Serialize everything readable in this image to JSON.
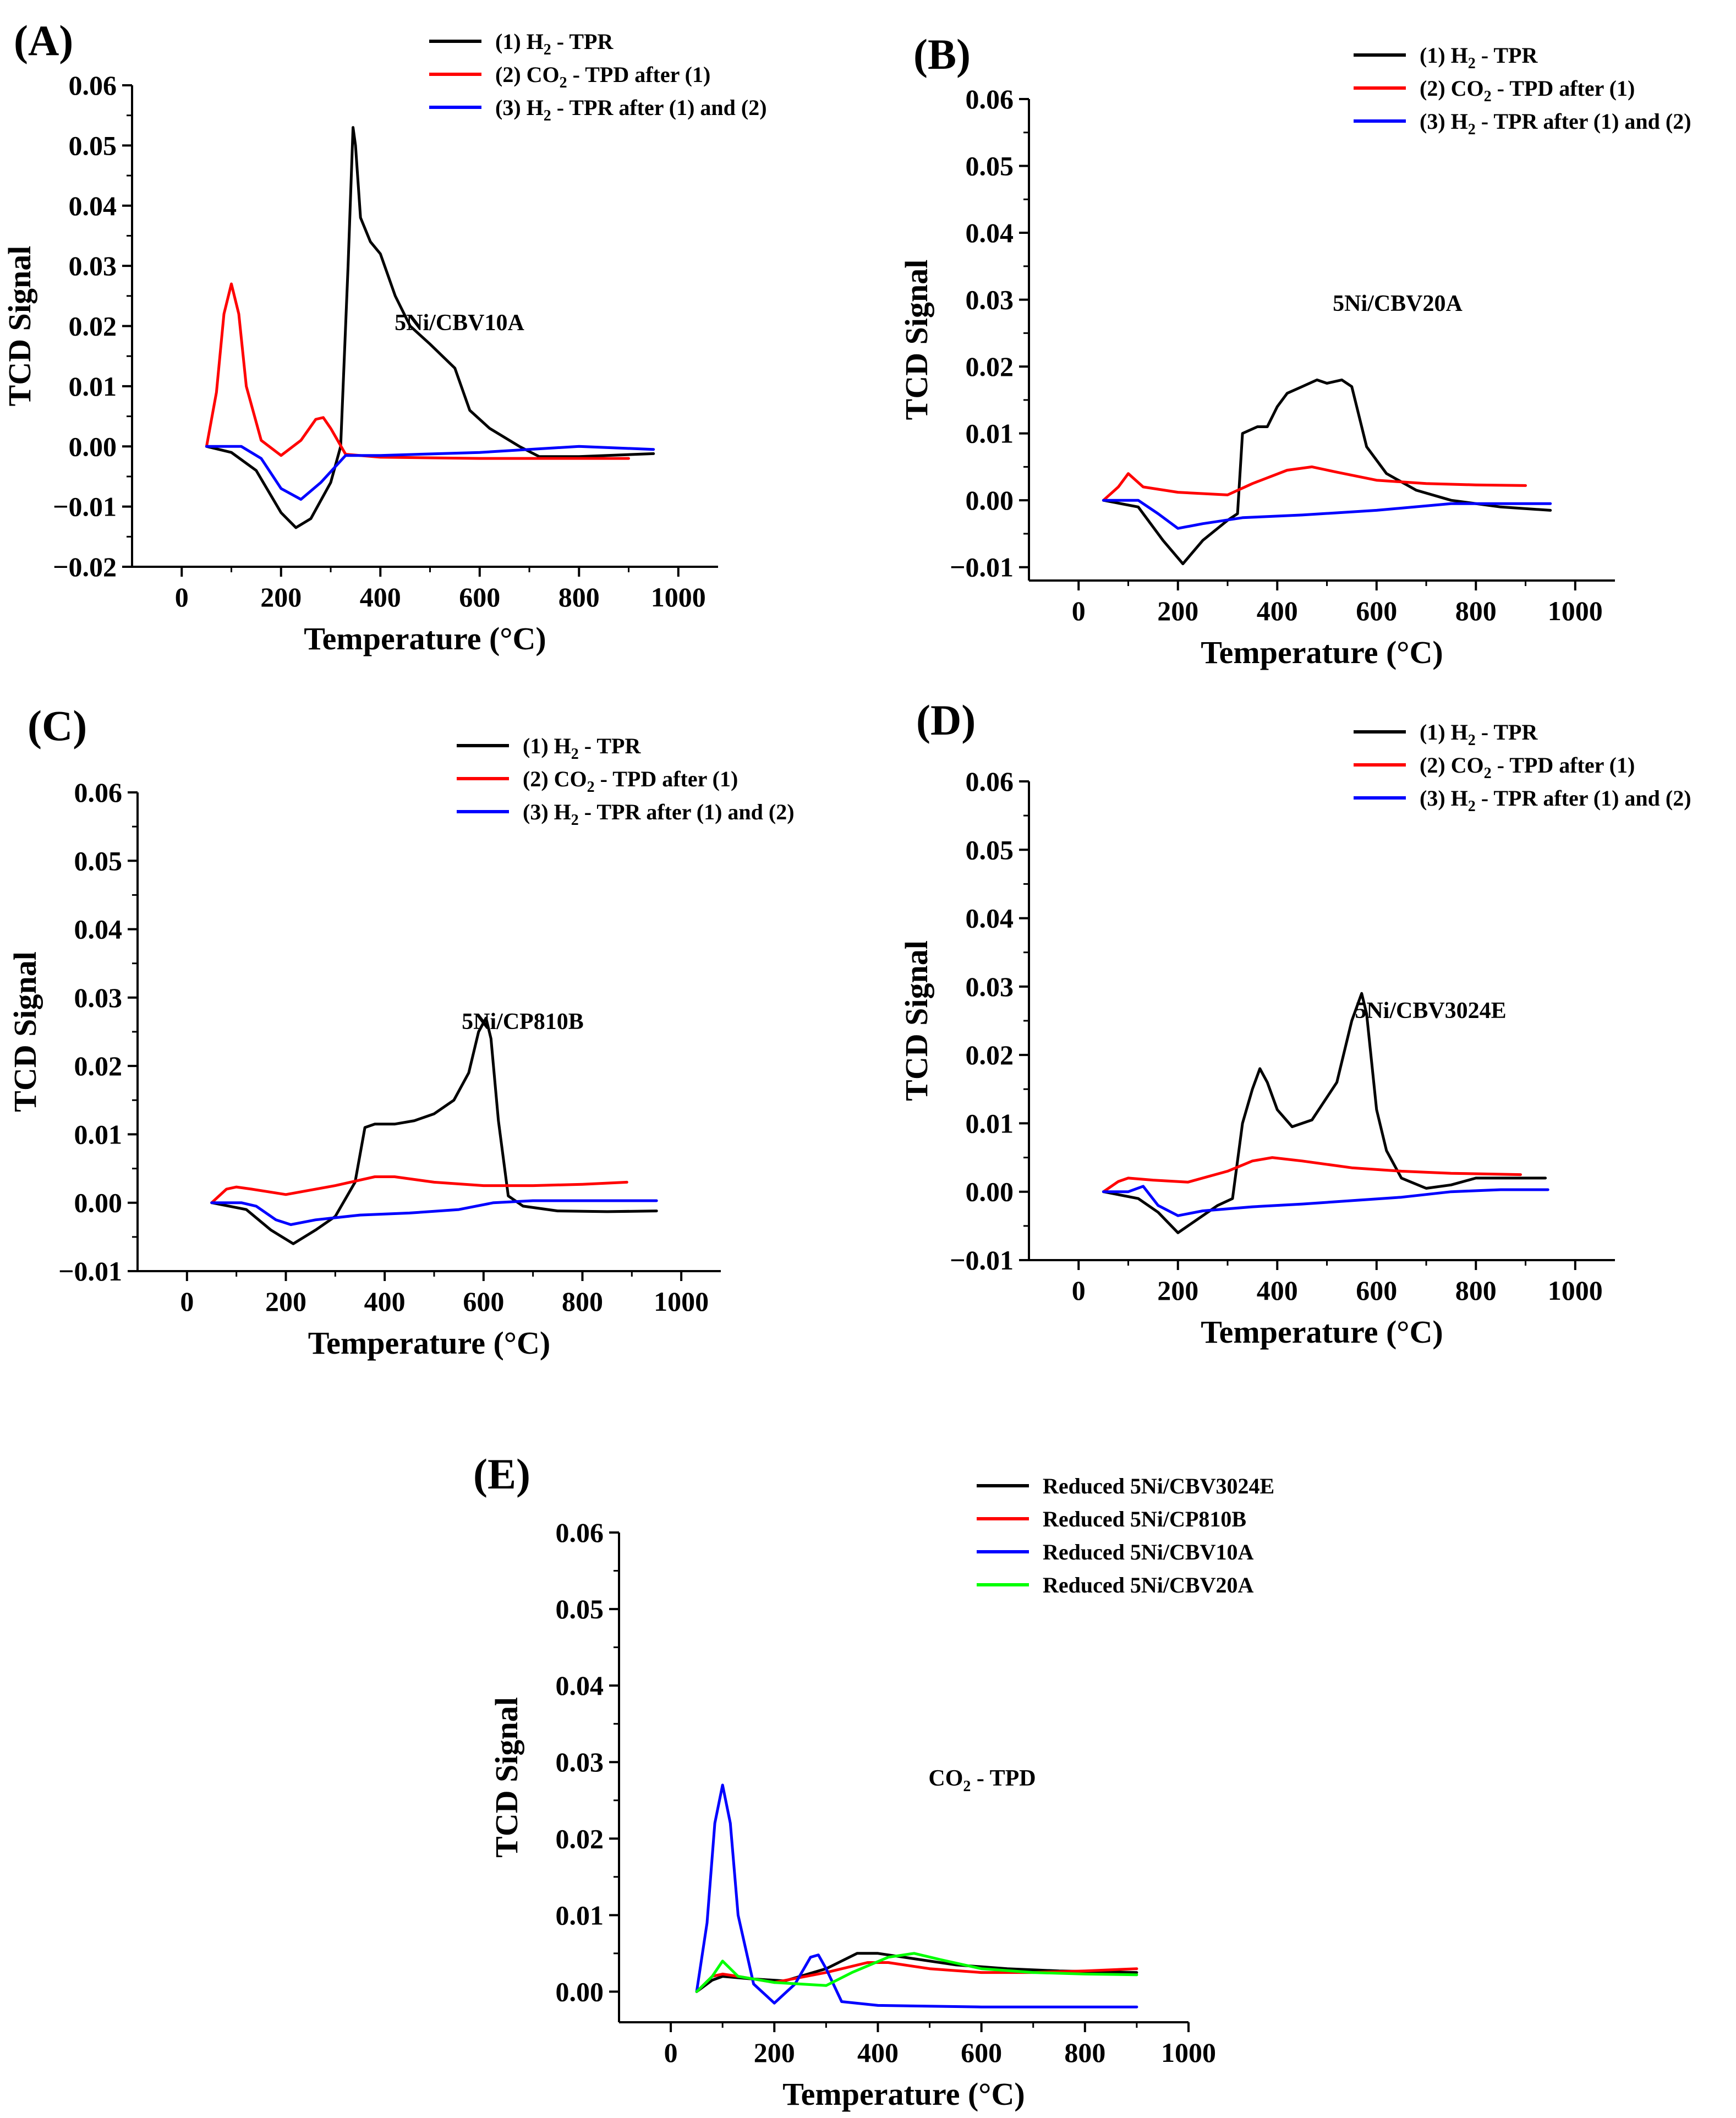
{
  "figure": {
    "description": "Five TCD signal vs temperature panels (A)-(E)"
  },
  "chart_data": [
    {
      "panel": "(A)",
      "type": "line",
      "annotation": "5Ni/CBV10A",
      "xlabel": "Temperature (°C)",
      "ylabel": "TCD Signal",
      "xlim": [
        -100,
        1080
      ],
      "ylim": [
        -0.02,
        0.06
      ],
      "xticks": [
        "0",
        "200",
        "400",
        "600",
        "800",
        "1000"
      ],
      "yticks": [
        "−0.02",
        "−0.01",
        "0.00",
        "0.01",
        "0.02",
        "0.03",
        "0.04",
        "0.05",
        "0.06"
      ],
      "legend_position": "top-right",
      "series": [
        {
          "name": "(1) H2 - TPR",
          "label_parts": [
            "(1) H",
            "2",
            " - TPR"
          ],
          "color": "#000000",
          "x": [
            50,
            100,
            150,
            200,
            230,
            260,
            300,
            320,
            335,
            345,
            350,
            360,
            380,
            400,
            430,
            460,
            500,
            550,
            580,
            620,
            680,
            720,
            800,
            950
          ],
          "y": [
            0,
            -0.001,
            -0.004,
            -0.011,
            -0.0135,
            -0.012,
            -0.006,
            0.0,
            0.03,
            0.053,
            0.05,
            0.038,
            0.034,
            0.032,
            0.025,
            0.02,
            0.017,
            0.013,
            0.006,
            0.003,
            0.0,
            -0.0017,
            -0.0017,
            -0.0012
          ]
        },
        {
          "name": "(2) CO2 - TPD after (1)",
          "label_parts": [
            "(2) CO",
            "2",
            " - TPD after (1)"
          ],
          "color": "#ff0000",
          "x": [
            50,
            70,
            85,
            100,
            115,
            130,
            160,
            200,
            240,
            270,
            285,
            300,
            330,
            400,
            600,
            900
          ],
          "y": [
            0,
            0.009,
            0.022,
            0.027,
            0.022,
            0.01,
            0.001,
            -0.0015,
            0.001,
            0.0045,
            0.0048,
            0.003,
            -0.0013,
            -0.0018,
            -0.002,
            -0.002
          ]
        },
        {
          "name": "(3) H2 - TPR after (1) and (2)",
          "label_parts": [
            "(3) H",
            "2",
            " - TPR after (1) and (2)"
          ],
          "color": "#0000ff",
          "x": [
            50,
            120,
            160,
            200,
            240,
            280,
            330,
            400,
            600,
            800,
            950
          ],
          "y": [
            0,
            0,
            -0.002,
            -0.007,
            -0.0088,
            -0.006,
            -0.0015,
            -0.0015,
            -0.001,
            0.0,
            -0.0005
          ]
        }
      ]
    },
    {
      "panel": "(B)",
      "type": "line",
      "annotation": "5Ni/CBV20A",
      "xlabel": "Temperature (°C)",
      "ylabel": "TCD Signal",
      "xlim": [
        -100,
        1080
      ],
      "ylim": [
        -0.012,
        0.06
      ],
      "xticks": [
        "0",
        "200",
        "400",
        "600",
        "800",
        "1000"
      ],
      "yticks": [
        "−0.01",
        "0.00",
        "0.01",
        "0.02",
        "0.03",
        "0.04",
        "0.05",
        "0.06"
      ],
      "legend_position": "top-right",
      "series": [
        {
          "name": "(1) H2 - TPR",
          "label_parts": [
            "(1) H",
            "2",
            " - TPR"
          ],
          "color": "#000000",
          "x": [
            50,
            120,
            170,
            210,
            250,
            300,
            320,
            330,
            360,
            380,
            400,
            420,
            450,
            480,
            500,
            530,
            550,
            560,
            580,
            620,
            680,
            750,
            850,
            950
          ],
          "y": [
            0,
            -0.001,
            -0.006,
            -0.0095,
            -0.006,
            -0.003,
            -0.002,
            0.01,
            0.011,
            0.011,
            0.014,
            0.016,
            0.017,
            0.018,
            0.0175,
            0.018,
            0.017,
            0.014,
            0.008,
            0.004,
            0.0015,
            0.0,
            -0.001,
            -0.0015
          ]
        },
        {
          "name": "(2) CO2 - TPD after (1)",
          "label_parts": [
            "(2) CO",
            "2",
            " - TPD after (1)"
          ],
          "color": "#ff0000",
          "x": [
            50,
            80,
            100,
            130,
            200,
            300,
            350,
            420,
            470,
            520,
            600,
            700,
            800,
            900
          ],
          "y": [
            0,
            0.002,
            0.004,
            0.002,
            0.0012,
            0.0008,
            0.0025,
            0.0045,
            0.005,
            0.0042,
            0.003,
            0.0025,
            0.0023,
            0.0022
          ]
        },
        {
          "name": "(3) H2 - TPR after (1) and (2)",
          "label_parts": [
            "(3) H",
            "2",
            " - TPR after (1) and (2)"
          ],
          "color": "#0000ff",
          "x": [
            50,
            120,
            160,
            200,
            250,
            330,
            450,
            600,
            750,
            850,
            950
          ],
          "y": [
            0,
            0,
            -0.002,
            -0.0042,
            -0.0035,
            -0.0026,
            -0.0022,
            -0.0015,
            -0.0005,
            -0.0005,
            -0.0005
          ]
        }
      ]
    },
    {
      "panel": "(C)",
      "type": "line",
      "annotation": "5Ni/CP810B",
      "xlabel": "Temperature (°C)",
      "ylabel": "TCD Signal",
      "xlim": [
        -100,
        1080
      ],
      "ylim": [
        -0.01,
        0.06
      ],
      "xticks": [
        "0",
        "200",
        "400",
        "600",
        "800",
        "1000"
      ],
      "yticks": [
        "−0.01",
        "0.00",
        "0.01",
        "0.02",
        "0.03",
        "0.04",
        "0.05",
        "0.06"
      ],
      "legend_position": "top-right",
      "series": [
        {
          "name": "(1) H2 - TPR",
          "label_parts": [
            "(1) H",
            "2",
            " - TPR"
          ],
          "color": "#000000",
          "x": [
            50,
            120,
            170,
            215,
            260,
            300,
            340,
            360,
            380,
            420,
            460,
            500,
            540,
            570,
            590,
            605,
            615,
            630,
            650,
            680,
            750,
            850,
            950
          ],
          "y": [
            0,
            -0.001,
            -0.004,
            -0.006,
            -0.004,
            -0.002,
            0.003,
            0.011,
            0.0115,
            0.0115,
            0.012,
            0.013,
            0.015,
            0.019,
            0.025,
            0.027,
            0.024,
            0.012,
            0.001,
            -0.0005,
            -0.0012,
            -0.0013,
            -0.0012
          ]
        },
        {
          "name": "(2) CO2 - TPD after (1)",
          "label_parts": [
            "(2) CO",
            "2",
            " - TPD after (1)"
          ],
          "color": "#ff0000",
          "x": [
            50,
            80,
            100,
            130,
            200,
            300,
            380,
            420,
            500,
            600,
            700,
            800,
            890
          ],
          "y": [
            0,
            0.002,
            0.0023,
            0.002,
            0.0012,
            0.0025,
            0.0038,
            0.0038,
            0.003,
            0.0025,
            0.0025,
            0.0027,
            0.003
          ]
        },
        {
          "name": "(3) H2 - TPR after (1) and (2)",
          "label_parts": [
            "(3) H",
            "2",
            " - TPR after (1) and (2)"
          ],
          "color": "#0000ff",
          "x": [
            50,
            110,
            140,
            180,
            210,
            260,
            350,
            450,
            550,
            620,
            700,
            800,
            950
          ],
          "y": [
            0,
            0,
            -0.0005,
            -0.0025,
            -0.0032,
            -0.0025,
            -0.0018,
            -0.0015,
            -0.001,
            0.0,
            0.0003,
            0.0003,
            0.0003
          ]
        }
      ]
    },
    {
      "panel": "(D)",
      "type": "line",
      "annotation": "5Ni/CBV3024E",
      "xlabel": "Temperature (°C)",
      "ylabel": "TCD Signal",
      "xlim": [
        -100,
        1080
      ],
      "ylim": [
        -0.01,
        0.06
      ],
      "xticks": [
        "0",
        "200",
        "400",
        "600",
        "800",
        "1000"
      ],
      "yticks": [
        "−0.01",
        "0.00",
        "0.01",
        "0.02",
        "0.03",
        "0.04",
        "0.05",
        "0.06"
      ],
      "legend_position": "top-right",
      "series": [
        {
          "name": "(1) H2 - TPR",
          "label_parts": [
            "(1) H",
            "2",
            " - TPR"
          ],
          "color": "#000000",
          "x": [
            50,
            120,
            160,
            200,
            240,
            280,
            310,
            330,
            350,
            365,
            380,
            400,
            430,
            470,
            520,
            550,
            570,
            580,
            600,
            620,
            650,
            700,
            750,
            800,
            900,
            940
          ],
          "y": [
            0,
            -0.001,
            -0.003,
            -0.006,
            -0.004,
            -0.002,
            -0.001,
            0.01,
            0.015,
            0.018,
            0.016,
            0.012,
            0.0095,
            0.0105,
            0.016,
            0.025,
            0.029,
            0.026,
            0.012,
            0.006,
            0.002,
            0.0005,
            0.001,
            0.002,
            0.002,
            0.002
          ]
        },
        {
          "name": "(2) CO2 - TPD after (1)",
          "label_parts": [
            "(2) CO",
            "2",
            " - TPD after (1)"
          ],
          "color": "#ff0000",
          "x": [
            50,
            80,
            100,
            150,
            220,
            300,
            350,
            390,
            450,
            550,
            650,
            750,
            890
          ],
          "y": [
            0,
            0.0015,
            0.002,
            0.0017,
            0.0014,
            0.003,
            0.0045,
            0.005,
            0.0045,
            0.0035,
            0.003,
            0.0027,
            0.0025
          ]
        },
        {
          "name": "(3) H2 - TPR after (1) and (2)",
          "label_parts": [
            "(3) H",
            "2",
            " - TPR after (1) and (2)"
          ],
          "color": "#0000ff",
          "x": [
            50,
            100,
            130,
            160,
            200,
            250,
            350,
            450,
            550,
            650,
            750,
            850,
            945
          ],
          "y": [
            0,
            0.0,
            0.0008,
            -0.002,
            -0.0035,
            -0.0028,
            -0.0022,
            -0.0018,
            -0.0013,
            -0.0008,
            0.0,
            0.0003,
            0.0003
          ]
        }
      ]
    },
    {
      "panel": "(E)",
      "type": "line",
      "annotation": "CO2 - TPD",
      "annotation_parts": [
        "CO",
        "2",
        " - TPD"
      ],
      "xlabel": "Temperature (°C)",
      "ylabel": "TCD Signal",
      "xlim": [
        -100,
        1000
      ],
      "ylim": [
        -0.004,
        0.06
      ],
      "xticks": [
        "0",
        "200",
        "400",
        "600",
        "800",
        "1000"
      ],
      "yticks": [
        "0.00",
        "0.01",
        "0.02",
        "0.03",
        "0.04",
        "0.05",
        "0.06"
      ],
      "legend_position": "top-right",
      "series": [
        {
          "name": "Reduced 5Ni/CBV3024E",
          "label_parts": [
            "Reduced 5Ni/CBV3024E"
          ],
          "color": "#000000",
          "x": [
            50,
            80,
            100,
            150,
            220,
            300,
            360,
            400,
            450,
            550,
            650,
            750,
            900
          ],
          "y": [
            0,
            0.0015,
            0.002,
            0.0017,
            0.0014,
            0.003,
            0.005,
            0.005,
            0.0045,
            0.0035,
            0.003,
            0.0027,
            0.0025
          ]
        },
        {
          "name": "Reduced 5Ni/CP810B",
          "label_parts": [
            "Reduced 5Ni/CP810B"
          ],
          "color": "#ff0000",
          "x": [
            50,
            80,
            100,
            130,
            200,
            300,
            380,
            420,
            500,
            600,
            700,
            800,
            900
          ],
          "y": [
            0,
            0.002,
            0.0023,
            0.002,
            0.0012,
            0.0025,
            0.0038,
            0.0038,
            0.003,
            0.0025,
            0.0025,
            0.0027,
            0.003
          ]
        },
        {
          "name": "Reduced 5Ni/CBV10A",
          "label_parts": [
            "Reduced 5Ni/CBV10A"
          ],
          "color": "#0000ff",
          "x": [
            50,
            70,
            85,
            100,
            115,
            130,
            160,
            200,
            240,
            270,
            285,
            300,
            330,
            400,
            600,
            900
          ],
          "y": [
            0,
            0.009,
            0.022,
            0.027,
            0.022,
            0.01,
            0.001,
            -0.0015,
            0.001,
            0.0045,
            0.0048,
            0.003,
            -0.0013,
            -0.0018,
            -0.002,
            -0.002
          ]
        },
        {
          "name": "Reduced 5Ni/CBV20A",
          "label_parts": [
            "Reduced 5Ni/CBV20A"
          ],
          "color": "#00ff00",
          "x": [
            50,
            80,
            100,
            130,
            200,
            300,
            350,
            420,
            470,
            520,
            600,
            700,
            800,
            900
          ],
          "y": [
            0,
            0.002,
            0.004,
            0.002,
            0.0012,
            0.0008,
            0.0025,
            0.0045,
            0.005,
            0.0042,
            0.003,
            0.0025,
            0.0023,
            0.0022
          ]
        }
      ]
    }
  ]
}
